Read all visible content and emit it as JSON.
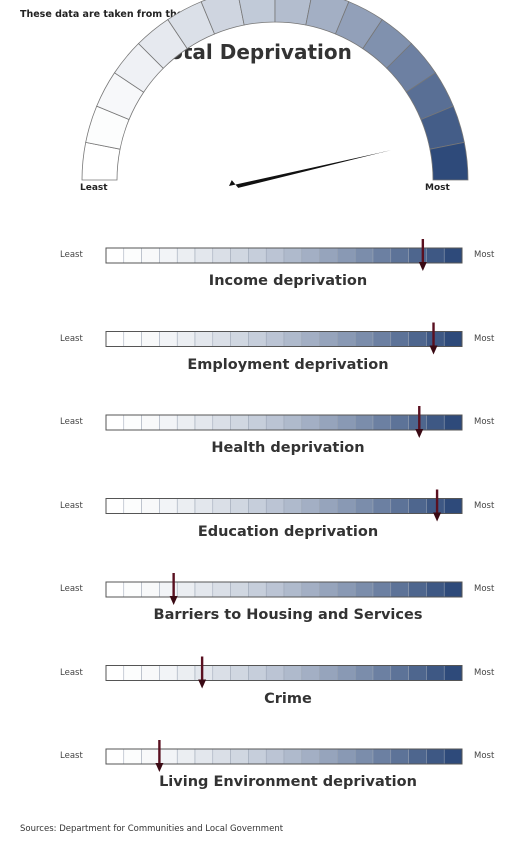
{
  "header": {
    "note": "These data are taken from the Indices of Deprivation 2015",
    "title": "Total Deprivation"
  },
  "gauge": {
    "least_label": "Least",
    "most_label": "Most",
    "value_fraction": 0.92,
    "segments": 16,
    "color_light": "#ffffff",
    "color_dark": "#2e4a7a"
  },
  "footer": {
    "source": "Sources: Department for Communities and Local Government"
  },
  "chart_data": {
    "type": "bar",
    "title": "Total Deprivation",
    "scale_labels": [
      "Least",
      "Most"
    ],
    "scale_range": [
      0,
      1
    ],
    "segments": 20,
    "categories": [
      "Income deprivation",
      "Employment deprivation",
      "Health deprivation",
      "Education deprivation",
      "Barriers to Housing and Services",
      "Crime",
      "Living Environment deprivation"
    ],
    "values": [
      0.89,
      0.92,
      0.88,
      0.93,
      0.19,
      0.27,
      0.15
    ],
    "least_label": "Least",
    "most_label": "Most"
  }
}
